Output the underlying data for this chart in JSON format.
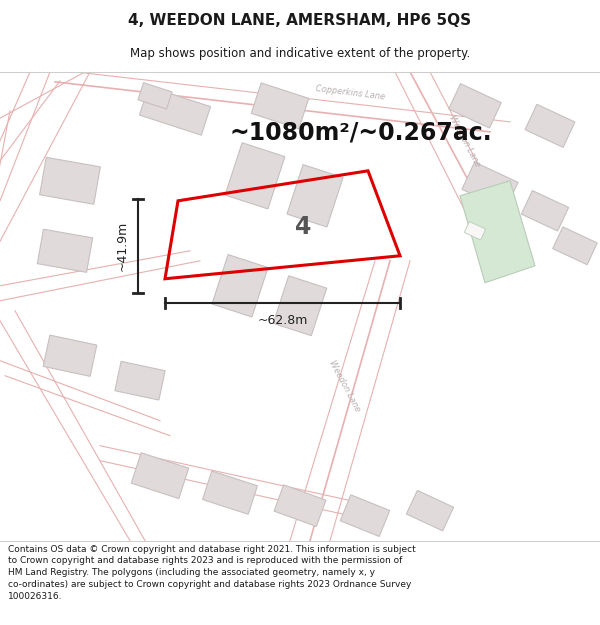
{
  "title": "4, WEEDON LANE, AMERSHAM, HP6 5QS",
  "subtitle": "Map shows position and indicative extent of the property.",
  "area_text": "~1080m²/~0.267ac.",
  "label_4": "4",
  "dim_width": "~62.8m",
  "dim_height": "~41.9m",
  "footer": "Contains OS data © Crown copyright and database right 2021. This information is subject to Crown copyright and database rights 2023 and is reproduced with the permission of HM Land Registry. The polygons (including the associated geometry, namely x, y co-ordinates) are subject to Crown copyright and database rights 2023 Ordnance Survey 100026316.",
  "bg_color": "#ffffff",
  "map_bg": "#f9f6f6",
  "road_color": "#e8b0b0",
  "building_fill": "#e0dada",
  "building_edge": "#c8c0c0",
  "green_fill": "#d4e8d4",
  "green_edge": "#b8ccb8",
  "plot_color": "#dd0000",
  "text_color": "#1a1a1a",
  "dim_color": "#222222",
  "road_label_color": "#b8b0b0",
  "area_color": "#111111"
}
